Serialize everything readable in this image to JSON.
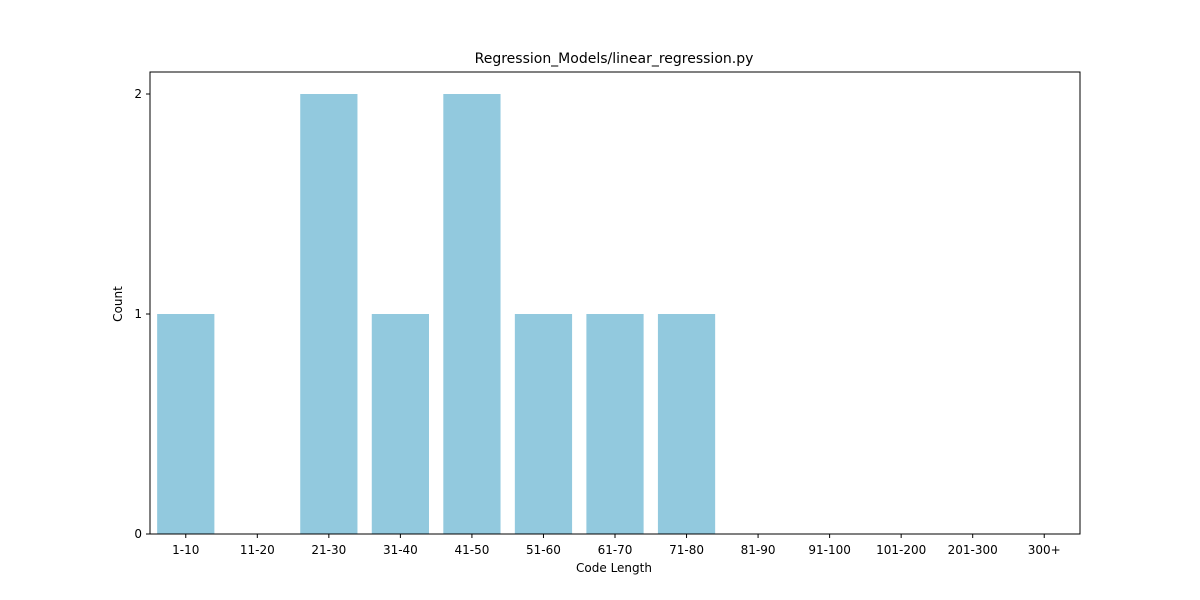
{
  "chart_data": {
    "type": "bar",
    "title": "Regression_Models/linear_regression.py",
    "xlabel": "Code Length",
    "ylabel": "Count",
    "categories": [
      "1-10",
      "11-20",
      "21-30",
      "31-40",
      "41-50",
      "51-60",
      "61-70",
      "71-80",
      "81-90",
      "91-100",
      "101-200",
      "201-300",
      "300+"
    ],
    "values": [
      1,
      0,
      2,
      1,
      2,
      1,
      1,
      1,
      0,
      0,
      0,
      0,
      0
    ],
    "yticks": [
      "0",
      "1",
      "2"
    ],
    "ylim": [
      0,
      2.1
    ],
    "grid": false,
    "bar_color": "#92c9de"
  }
}
